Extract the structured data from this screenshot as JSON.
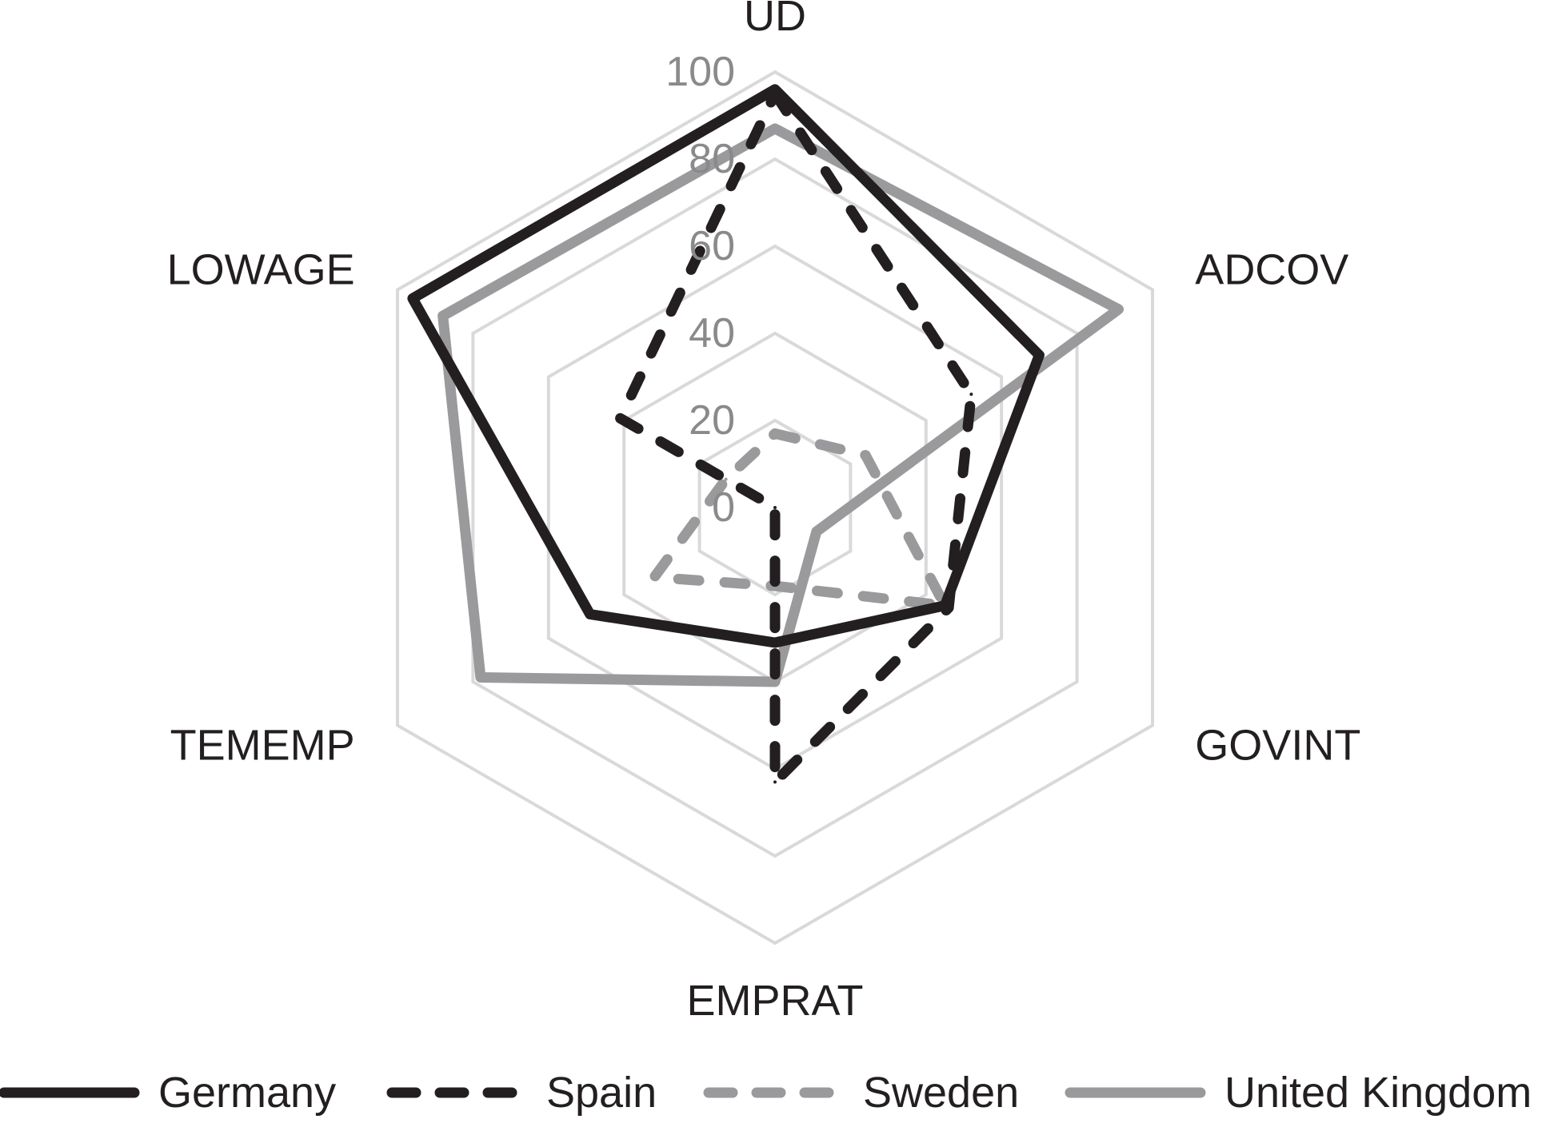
{
  "chart_data": {
    "type": "radar",
    "axes": [
      "UD",
      "ADCOV",
      "GOVINT",
      "EMPRAT",
      "TEMEMP",
      "LOWAGE"
    ],
    "ticks": [
      0,
      20,
      40,
      60,
      80,
      100
    ],
    "range": [
      0,
      100
    ],
    "grid": true,
    "legend": "bottom",
    "series": [
      {
        "name": "Germany",
        "values": [
          96,
          70,
          45,
          31,
          49,
          96
        ],
        "color": "#231f20",
        "dash": "solid"
      },
      {
        "name": "Spain",
        "values": [
          95,
          52,
          46,
          63,
          0,
          41
        ],
        "color": "#231f20",
        "dash": "dashed"
      },
      {
        "name": "Sweden",
        "values": [
          17,
          24,
          45,
          18,
          32,
          13
        ],
        "color": "#9a9a9c",
        "dash": "dashed"
      },
      {
        "name": "United Kingdom",
        "values": [
          87,
          91,
          11,
          40,
          78,
          88
        ],
        "color": "#9a9a9c",
        "dash": "solid"
      }
    ]
  },
  "colors": {
    "grid": "#d9d9d9",
    "dark": "#231f20",
    "light": "#9a9a9c"
  }
}
